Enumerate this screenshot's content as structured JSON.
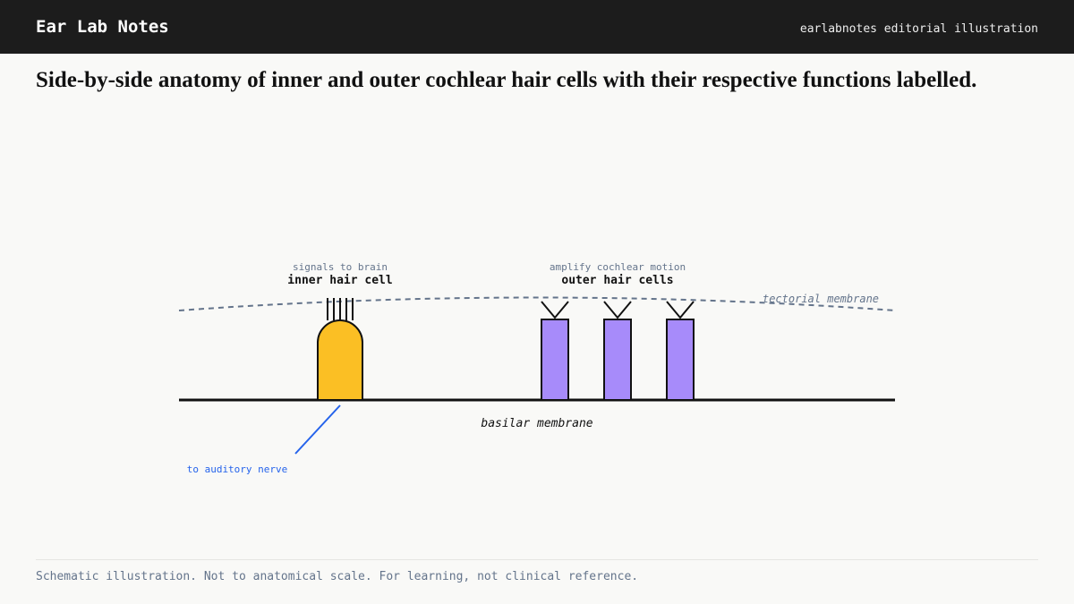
{
  "header": {
    "brand": "Ear Lab Notes",
    "tagline": "earlabnotes editorial illustration"
  },
  "title": "Side-by-side anatomy of inner and outer cochlear hair cells with their respective functions labelled.",
  "diagram": {
    "inner": {
      "function": "signals to brain",
      "label": "inner hair cell"
    },
    "outer": {
      "function": "amplify cochlear motion",
      "label": "outer hair cells"
    },
    "tectorial": "tectorial membrane",
    "basilar": "basilar membrane",
    "nerve": "to auditory nerve"
  },
  "footer": "Schematic illustration. Not to anatomical scale. For learning, not clinical reference."
}
